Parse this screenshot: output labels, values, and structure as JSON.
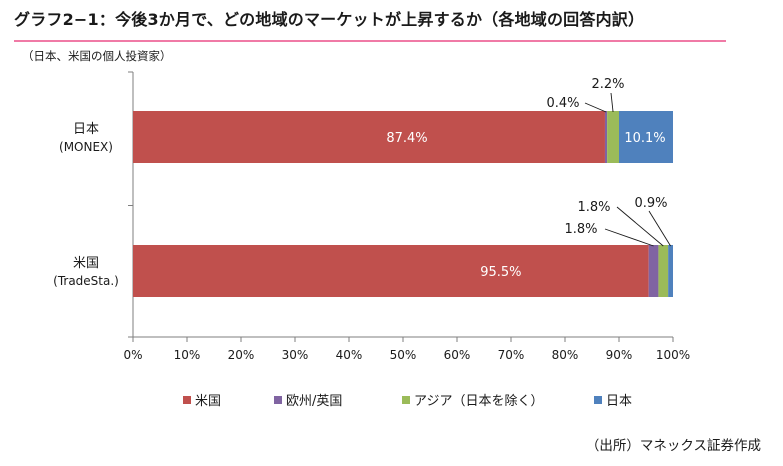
{
  "title": "グラフ2−1：今後3か月で、どの地域のマーケットが上昇するか（各地域の回答内訳）",
  "subtitle": "（日本、米国の個人投資家）",
  "source": "（出所）マネックス証券作成",
  "colors": {
    "us": "#c0504d",
    "europe": "#8064a2",
    "asia": "#9bbb59",
    "japan": "#4f81bd",
    "accent_rule": "#f07aa6"
  },
  "chart_data": {
    "type": "bar",
    "orientation": "horizontal",
    "stacked": true,
    "title": "グラフ2−1：今後3か月で、どの地域のマーケットが上昇するか（各地域の回答内訳）",
    "categories": [
      {
        "name": "日本",
        "sub": "(MONEX)"
      },
      {
        "name": "米国",
        "sub": "(TradeSta.)"
      }
    ],
    "series": [
      {
        "name": "米国",
        "color_key": "us",
        "values": [
          87.4,
          95.5
        ]
      },
      {
        "name": "欧州/英国",
        "color_key": "europe",
        "values": [
          0.4,
          1.8
        ]
      },
      {
        "name": "アジア（日本を除く）",
        "color_key": "asia",
        "values": [
          2.2,
          1.8
        ]
      },
      {
        "name": "日本",
        "color_key": "japan",
        "values": [
          10.1,
          0.9
        ]
      }
    ],
    "data_labels": [
      [
        "87.4%",
        "0.4%",
        "2.2%",
        "10.1%"
      ],
      [
        "95.5%",
        "1.8%",
        "1.8%",
        "0.9%"
      ]
    ],
    "xlim": [
      0,
      100
    ],
    "xticks": [
      "0%",
      "10%",
      "20%",
      "30%",
      "40%",
      "50%",
      "60%",
      "70%",
      "80%",
      "90%",
      "100%"
    ],
    "legend_position": "bottom",
    "xlabel": "",
    "ylabel": ""
  }
}
